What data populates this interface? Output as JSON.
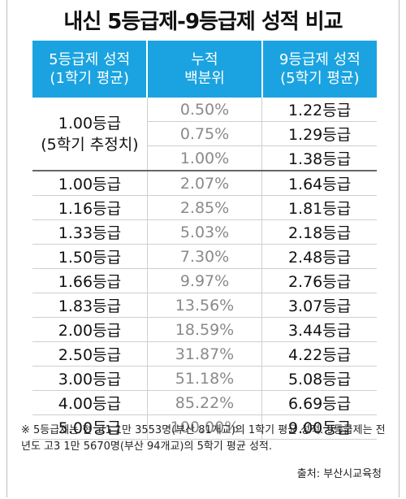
{
  "title": "내신 5등급제-9등급제 성적 비교",
  "headers": [
    "5등급제 성적\n(1학기 평균)",
    "누적\n백분위",
    "9등급제 성적\n(5학기 평균)"
  ],
  "header_color": "#1aa3e0",
  "group": {
    "grade_line1": "1.00등급",
    "grade_line2": "(5학기 추정치)",
    "rows": [
      {
        "percentile": "0.50%",
        "grade9": "1.22등급"
      },
      {
        "percentile": "0.75%",
        "grade9": "1.29등급"
      },
      {
        "percentile": "1.00%",
        "grade9": "1.38등급"
      }
    ]
  },
  "rows": [
    {
      "grade5": "1.00등급",
      "percentile": "2.07%",
      "grade9": "1.64등급"
    },
    {
      "grade5": "1.16등급",
      "percentile": "2.85%",
      "grade9": "1.81등급"
    },
    {
      "grade5": "1.33등급",
      "percentile": "5.03%",
      "grade9": "2.18등급"
    },
    {
      "grade5": "1.50등급",
      "percentile": "7.30%",
      "grade9": "2.48등급"
    },
    {
      "grade5": "1.66등급",
      "percentile": "9.97%",
      "grade9": "2.76등급"
    },
    {
      "grade5": "1.83등급",
      "percentile": "13.56%",
      "grade9": "3.07등급"
    },
    {
      "grade5": "2.00등급",
      "percentile": "18.59%",
      "grade9": "3.44등급"
    },
    {
      "grade5": "2.50등급",
      "percentile": "31.87%",
      "grade9": "4.22등급"
    },
    {
      "grade5": "3.00등급",
      "percentile": "51.18%",
      "grade9": "5.08등급"
    },
    {
      "grade5": "4.00등급",
      "percentile": "85.22%",
      "grade9": "6.69등급"
    },
    {
      "grade5": "5.00등급",
      "percentile": "100.00%",
      "grade9": "9.00등급"
    }
  ],
  "footnote": "※ 5등급제는 현 고1 1만 3553명(부산 81개교)의 1학기 평균 성적. 9등급제는 전년도 고3 1만 5670명(부산 94개교)의 5학기 평균 성적.",
  "source": "출처: 부산시교육청"
}
